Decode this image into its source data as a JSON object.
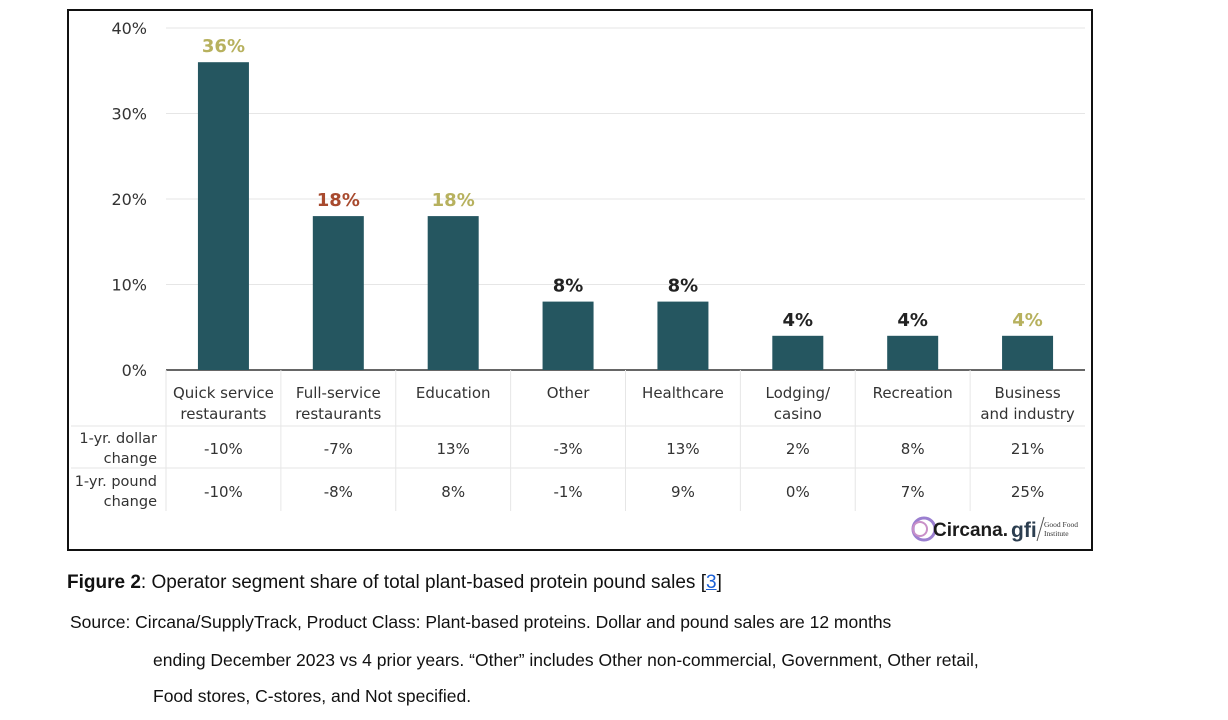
{
  "chart_data": {
    "type": "bar",
    "categories": [
      [
        "Quick service",
        "restaurants"
      ],
      [
        "Full-service",
        "restaurants"
      ],
      [
        "Education"
      ],
      [
        "Other"
      ],
      [
        "Healthcare"
      ],
      [
        "Lodging/",
        "casino"
      ],
      [
        "Recreation"
      ],
      [
        "Business",
        "and industry"
      ]
    ],
    "values": [
      36,
      18,
      18,
      8,
      8,
      4,
      4,
      4
    ],
    "value_labels": [
      "36%",
      "18%",
      "18%",
      "8%",
      "8%",
      "4%",
      "4%",
      "4%"
    ],
    "label_colors": [
      "#b7b15e",
      "#a84a2e",
      "#b7b15e",
      "#222222",
      "#222222",
      "#222222",
      "#222222",
      "#b7b15e"
    ],
    "ylim": [
      0,
      40
    ],
    "yticks": [
      "0%",
      "10%",
      "20%",
      "30%",
      "40%"
    ],
    "bar_color": "#255660",
    "grid": true,
    "table_rows": [
      {
        "label": [
          "1-yr. dollar",
          "change"
        ],
        "values": [
          "-10%",
          "-7%",
          "13%",
          "-3%",
          "13%",
          "2%",
          "8%",
          "21%"
        ]
      },
      {
        "label": [
          "1-yr. pound",
          "change"
        ],
        "values": [
          "-10%",
          "-8%",
          "8%",
          "-1%",
          "9%",
          "0%",
          "7%",
          "25%"
        ]
      }
    ]
  },
  "logos": {
    "circana": "Circana.",
    "gfi": "gfi",
    "gfi_tagline": [
      "Good Food",
      "Institute"
    ]
  },
  "caption": {
    "figure_label": "Figure 2",
    "text": ": Operator segment share of total plant-based protein pound sales [",
    "ref": "3",
    "close": "]"
  },
  "source": {
    "line1": "Source: Circana/SupplyTrack, Product Class: Plant-based proteins. Dollar and pound sales are 12 months",
    "line2": "ending December 2023 vs 4 prior years. “Other” includes Other non-commercial, Government, Other retail,",
    "line3": "Food stores, C-stores, and Not specified."
  }
}
